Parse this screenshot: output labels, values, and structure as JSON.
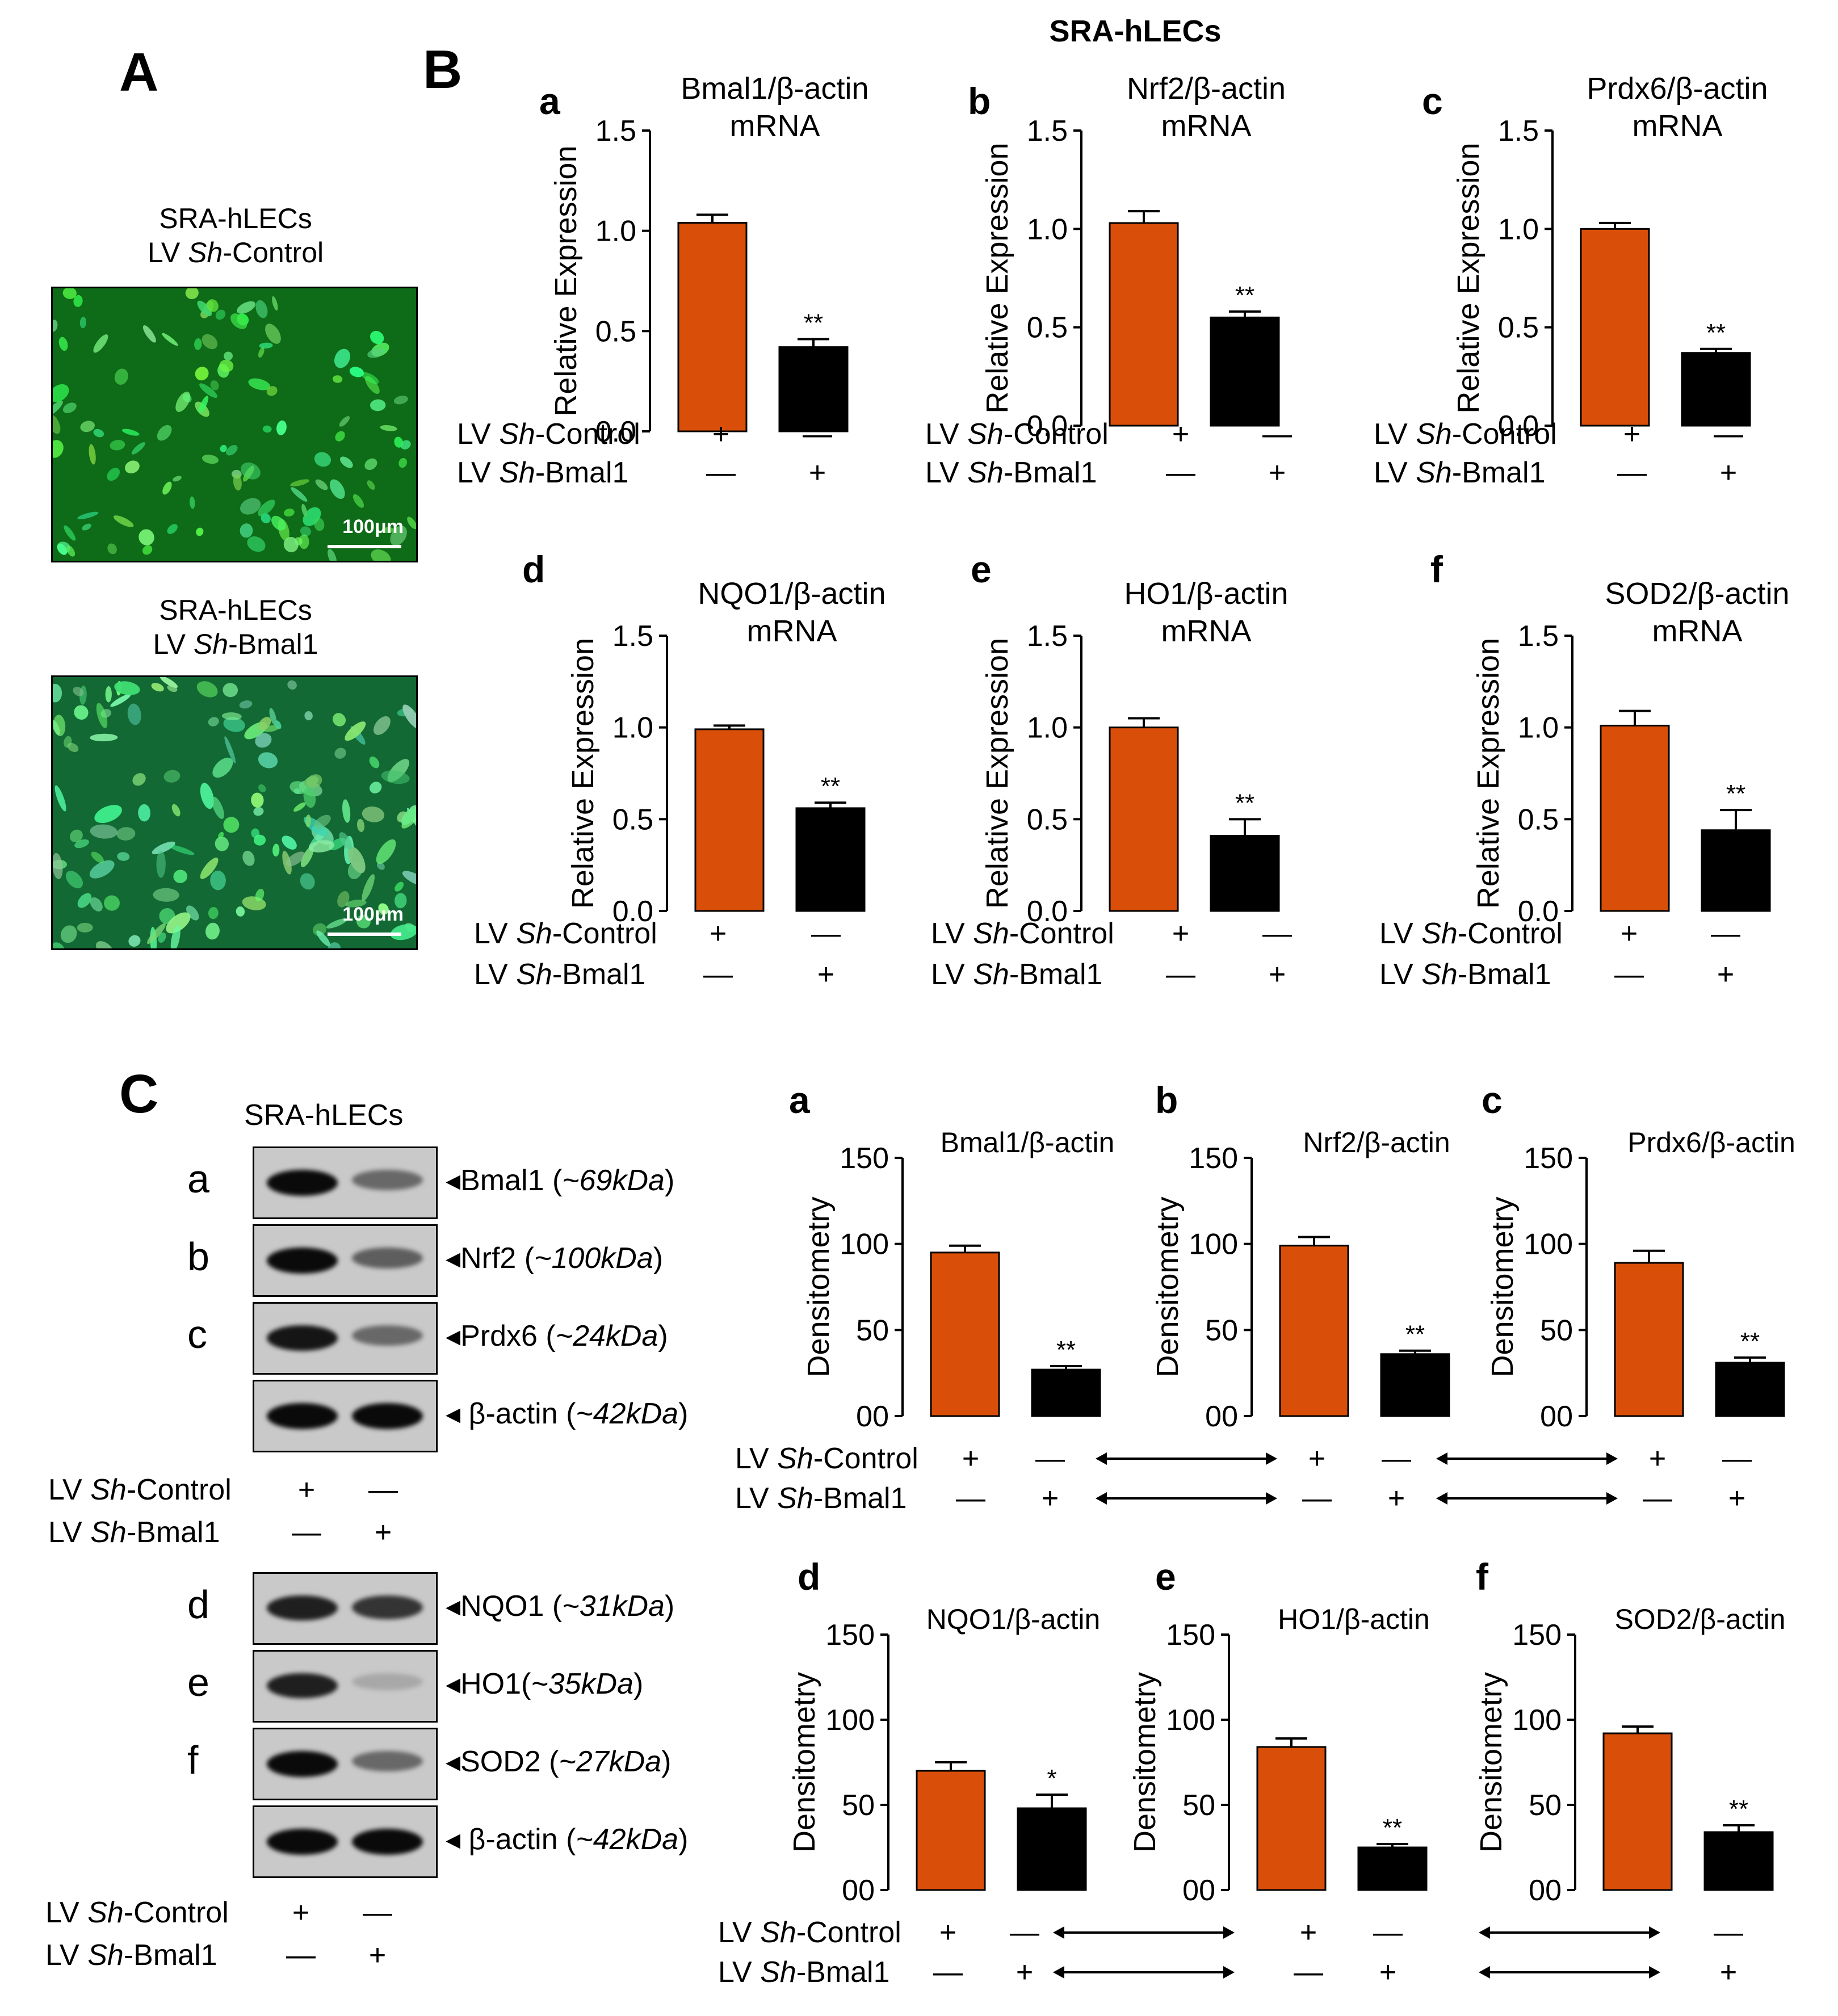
{
  "figure_title": "SRA-hLECs",
  "panel_letters": {
    "A": "A",
    "B": "B",
    "C": "C"
  },
  "panelA": {
    "images": [
      {
        "title_line1": "SRA-hLECs",
        "title_line2_prefix": "LV ",
        "title_line2_italic": "Sh",
        "title_line2_suffix": "-Control",
        "scale": "100μm"
      },
      {
        "title_line1": "SRA-hLECs",
        "title_line2_prefix": "LV ",
        "title_line2_italic": "Sh",
        "title_line2_suffix": "-Bmal1",
        "scale": "100μm"
      }
    ]
  },
  "treatment_labels": {
    "control_prefix": "LV ",
    "control_italic": "Sh",
    "control_suffix": "-Control",
    "bmal_prefix": "LV ",
    "bmal_italic": "Sh",
    "bmal_suffix": "-Bmal1",
    "plus": "+",
    "minus": "—"
  },
  "panelC": {
    "header": "SRA-hLECs",
    "blots_top": [
      {
        "letter": "a",
        "label": "◂Bmal1 (",
        "size": "~69kDa",
        "close": ")",
        "intensity": [
          1.0,
          0.55
        ]
      },
      {
        "letter": "b",
        "label": "◂Nrf2 (",
        "size": "~100kDa",
        "close": ")",
        "intensity": [
          1.0,
          0.6
        ]
      },
      {
        "letter": "c",
        "label": "◂Prdx6 (",
        "size": "~24kDa",
        "close": ")",
        "intensity": [
          0.95,
          0.55
        ]
      },
      {
        "letter": "",
        "label": "◂ β-actin (",
        "size": "~42kDa",
        "close": ")",
        "intensity": [
          1.0,
          1.0
        ]
      }
    ],
    "blots_bottom": [
      {
        "letter": "d",
        "label": "◂NQO1 (",
        "size": "~31kDa",
        "close": ")",
        "intensity": [
          0.9,
          0.8
        ]
      },
      {
        "letter": "e",
        "label": "◂HO1(",
        "size": "~35kDa",
        "close": ")",
        "intensity": [
          0.9,
          0.25
        ]
      },
      {
        "letter": "f",
        "label": "◂SOD2 (",
        "size": "~27kDa",
        "close": ")",
        "intensity": [
          1.0,
          0.55
        ]
      },
      {
        "letter": "",
        "label": "◂ β-actin (",
        "size": "~42kDa",
        "close": ")",
        "intensity": [
          1.0,
          1.0
        ]
      }
    ]
  },
  "colors": {
    "control": "#d94f0a",
    "knockdown": "#000000"
  },
  "chart_data": [
    {
      "type": "bar",
      "panel": "B",
      "letter": "a",
      "title": [
        "Bmal1/β-actin",
        "mRNA"
      ],
      "ylabel": "Relative Expression",
      "ylim": [
        0,
        1.5
      ],
      "yticks": [
        "0.0",
        "0.5",
        "1.0",
        "1.5"
      ],
      "values": [
        1.04,
        0.42
      ],
      "errors": [
        0.04,
        0.04
      ],
      "sig": "**"
    },
    {
      "type": "bar",
      "panel": "B",
      "letter": "b",
      "title": [
        "Nrf2/β-actin",
        "mRNA"
      ],
      "ylabel": "Relative Expression",
      "ylim": [
        0,
        1.5
      ],
      "yticks": [
        "0.0",
        "0.5",
        "1.0",
        "1.5"
      ],
      "values": [
        1.03,
        0.55
      ],
      "errors": [
        0.06,
        0.03
      ],
      "sig": "**"
    },
    {
      "type": "bar",
      "panel": "B",
      "letter": "c",
      "title": [
        "Prdx6/β-actin",
        "mRNA"
      ],
      "ylabel": "Relative Expression",
      "ylim": [
        0,
        1.5
      ],
      "yticks": [
        "0.0",
        "0.5",
        "1.0",
        "1.5"
      ],
      "values": [
        1.0,
        0.37
      ],
      "errors": [
        0.03,
        0.02
      ],
      "sig": "**"
    },
    {
      "type": "bar",
      "panel": "B",
      "letter": "d",
      "title": [
        "NQO1/β-actin",
        "mRNA"
      ],
      "ylabel": "Relative Expression",
      "ylim": [
        0,
        1.5
      ],
      "yticks": [
        "0.0",
        "0.5",
        "1.0",
        "1.5"
      ],
      "values": [
        0.99,
        0.56
      ],
      "errors": [
        0.02,
        0.03
      ],
      "sig": "**"
    },
    {
      "type": "bar",
      "panel": "B",
      "letter": "e",
      "title": [
        "HO1/β-actin",
        "mRNA"
      ],
      "ylabel": "Relative Expression",
      "ylim": [
        0,
        1.5
      ],
      "yticks": [
        "0.0",
        "0.5",
        "1.0",
        "1.5"
      ],
      "values": [
        1.0,
        0.41
      ],
      "errors": [
        0.05,
        0.09
      ],
      "sig": "**"
    },
    {
      "type": "bar",
      "panel": "B",
      "letter": "f",
      "title": [
        "SOD2/β-actin",
        "mRNA"
      ],
      "ylabel": "Relative Expression",
      "ylim": [
        0,
        1.5
      ],
      "yticks": [
        "0.0",
        "0.5",
        "1.0",
        "1.5"
      ],
      "values": [
        1.01,
        0.44
      ],
      "errors": [
        0.08,
        0.11
      ],
      "sig": "**"
    },
    {
      "type": "bar",
      "panel": "C",
      "letter": "a",
      "title": [
        "Bmal1/β-actin"
      ],
      "ylabel": "Densitometry",
      "ylim": [
        0,
        150
      ],
      "yticks": [
        "00",
        "50",
        "100",
        "150"
      ],
      "values": [
        95,
        27
      ],
      "errors": [
        4,
        2
      ],
      "sig": "**"
    },
    {
      "type": "bar",
      "panel": "C",
      "letter": "b",
      "title": [
        "Nrf2/β-actin"
      ],
      "ylabel": "Densitometry",
      "ylim": [
        0,
        150
      ],
      "yticks": [
        "00",
        "50",
        "100",
        "150"
      ],
      "values": [
        99,
        36
      ],
      "errors": [
        5,
        2
      ],
      "sig": "**"
    },
    {
      "type": "bar",
      "panel": "C",
      "letter": "c",
      "title": [
        "Prdx6/β-actin"
      ],
      "ylabel": "Densitometry",
      "ylim": [
        0,
        150
      ],
      "yticks": [
        "00",
        "50",
        "100",
        "150"
      ],
      "values": [
        89,
        31
      ],
      "errors": [
        7,
        3
      ],
      "sig": "**"
    },
    {
      "type": "bar",
      "panel": "C",
      "letter": "d",
      "title": [
        "NQO1/β-actin"
      ],
      "ylabel": "Densitometry",
      "ylim": [
        0,
        150
      ],
      "yticks": [
        "00",
        "50",
        "100",
        "150"
      ],
      "values": [
        70,
        48
      ],
      "errors": [
        5,
        8
      ],
      "sig": "*"
    },
    {
      "type": "bar",
      "panel": "C",
      "letter": "e",
      "title": [
        "HO1/β-actin"
      ],
      "ylabel": "Densitometry",
      "ylim": [
        0,
        150
      ],
      "yticks": [
        "00",
        "50",
        "100",
        "150"
      ],
      "values": [
        84,
        25
      ],
      "errors": [
        5,
        2
      ],
      "sig": "**"
    },
    {
      "type": "bar",
      "panel": "C",
      "letter": "f",
      "title": [
        "SOD2/β-actin"
      ],
      "ylabel": "Densitometry",
      "ylim": [
        0,
        150
      ],
      "yticks": [
        "00",
        "50",
        "100",
        "150"
      ],
      "values": [
        92,
        34
      ],
      "errors": [
        4,
        4
      ],
      "sig": "**"
    }
  ]
}
